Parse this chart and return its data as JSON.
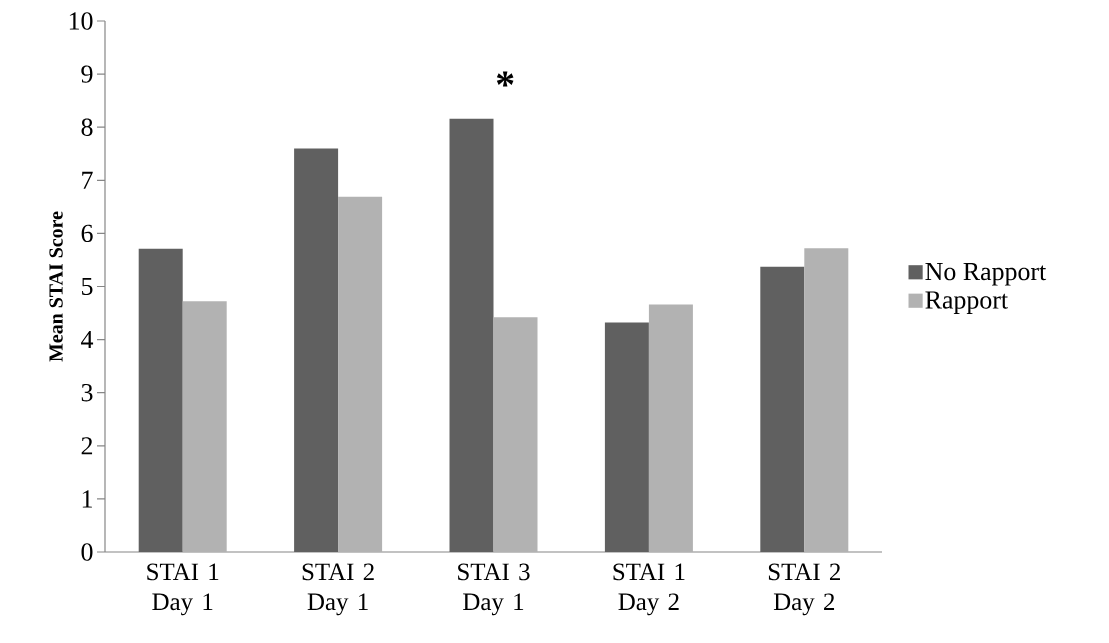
{
  "chart_data": {
    "type": "bar",
    "ylabel": "Mean STAI Score",
    "categories": [
      "STAI 1 Day 1",
      "STAI 2 Day 1",
      "STAI 3 Day 1",
      "STAI 1 Day 2",
      "STAI 2 Day 2"
    ],
    "series": [
      {
        "name": "No Rapport",
        "color": "#606060",
        "values": [
          5.71,
          7.6,
          8.16,
          4.32,
          5.37
        ]
      },
      {
        "name": "Rapport",
        "color": "#b2b2b2",
        "values": [
          4.72,
          6.69,
          4.42,
          4.66,
          5.72
        ]
      }
    ],
    "ylim": [
      0,
      10
    ],
    "yticks": [
      0,
      1,
      2,
      3,
      4,
      5,
      6,
      7,
      8,
      9,
      10
    ],
    "grid": false,
    "legend": "right",
    "annotations": [
      "*"
    ]
  }
}
